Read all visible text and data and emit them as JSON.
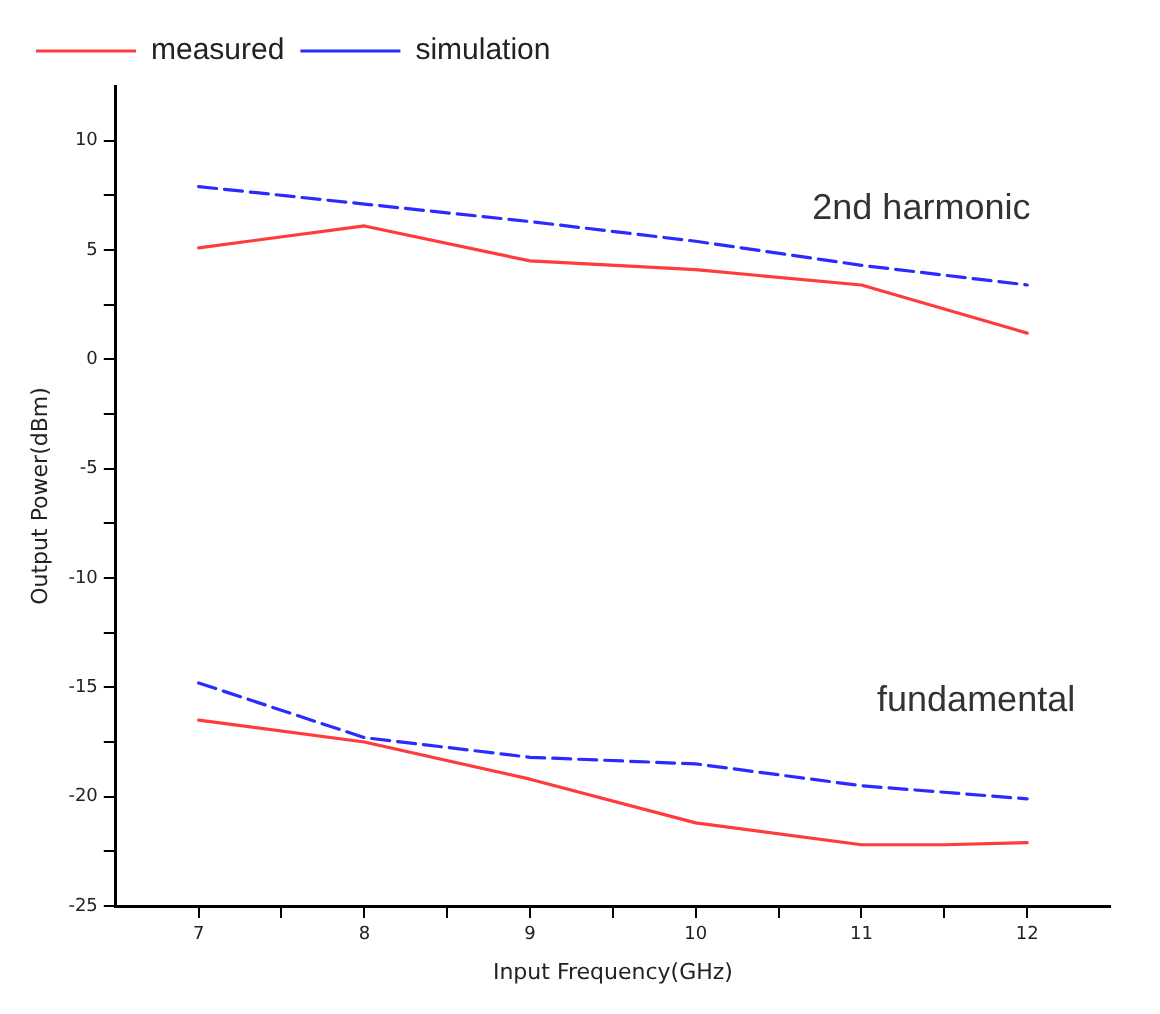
{
  "chart_data": {
    "type": "line",
    "xlabel": "Input Frequency(GHz)",
    "ylabel": "Output Power(dBm)",
    "xlim": [
      6.5,
      12.5
    ],
    "xticks": [
      7,
      {
        "value": 7.5,
        "label": null
      },
      8,
      {
        "value": 8.5,
        "label": null
      },
      9,
      {
        "value": 9.5,
        "label": null
      },
      10,
      {
        "value": 10.5,
        "label": null
      },
      11,
      {
        "value": 11.5,
        "label": null
      },
      12
    ],
    "ylim": [
      -25,
      12.5
    ],
    "yticks": [
      -25,
      {
        "value": -22.5,
        "label": null
      },
      -20,
      {
        "value": -17.5,
        "label": null
      },
      -15,
      {
        "value": -12.5,
        "label": null
      },
      -10,
      {
        "value": -7.5,
        "label": null
      },
      -5,
      {
        "value": -2.5,
        "label": null
      },
      0,
      {
        "value": 2.5,
        "label": null
      },
      5,
      {
        "value": 7.5,
        "label": null
      },
      10
    ],
    "series": [
      {
        "name": "measured",
        "color": "#ff3b3b",
        "line_style": "solid",
        "x": [
          7,
          8,
          9,
          10,
          11,
          12
        ],
        "values": [
          5.1,
          6.1,
          4.5,
          4.1,
          3.4,
          1.2
        ]
      },
      {
        "name": "simulation",
        "color": "#2b2bff",
        "line_style": "dashed",
        "x": [
          7,
          8,
          9,
          10,
          11,
          12
        ],
        "values": [
          7.9,
          7.1,
          6.3,
          5.4,
          4.3,
          3.4
        ]
      },
      {
        "color": "#ff3b3b",
        "line_style": "solid",
        "x": [
          7,
          8,
          9,
          10,
          11,
          11.5,
          12
        ],
        "values": [
          -16.5,
          -17.5,
          -19.2,
          -21.2,
          -22.2,
          -22.2,
          -22.1
        ]
      },
      {
        "color": "#2b2bff",
        "line_style": "dashed",
        "x": [
          7,
          8,
          9,
          10,
          11,
          12
        ],
        "values": [
          -14.8,
          -17.3,
          -18.2,
          -18.5,
          -19.5,
          -20.1
        ]
      }
    ],
    "annotations": [
      "2nd harmonic",
      "fundamental"
    ],
    "marker": "none",
    "grid": false,
    "legend": "top left"
  }
}
